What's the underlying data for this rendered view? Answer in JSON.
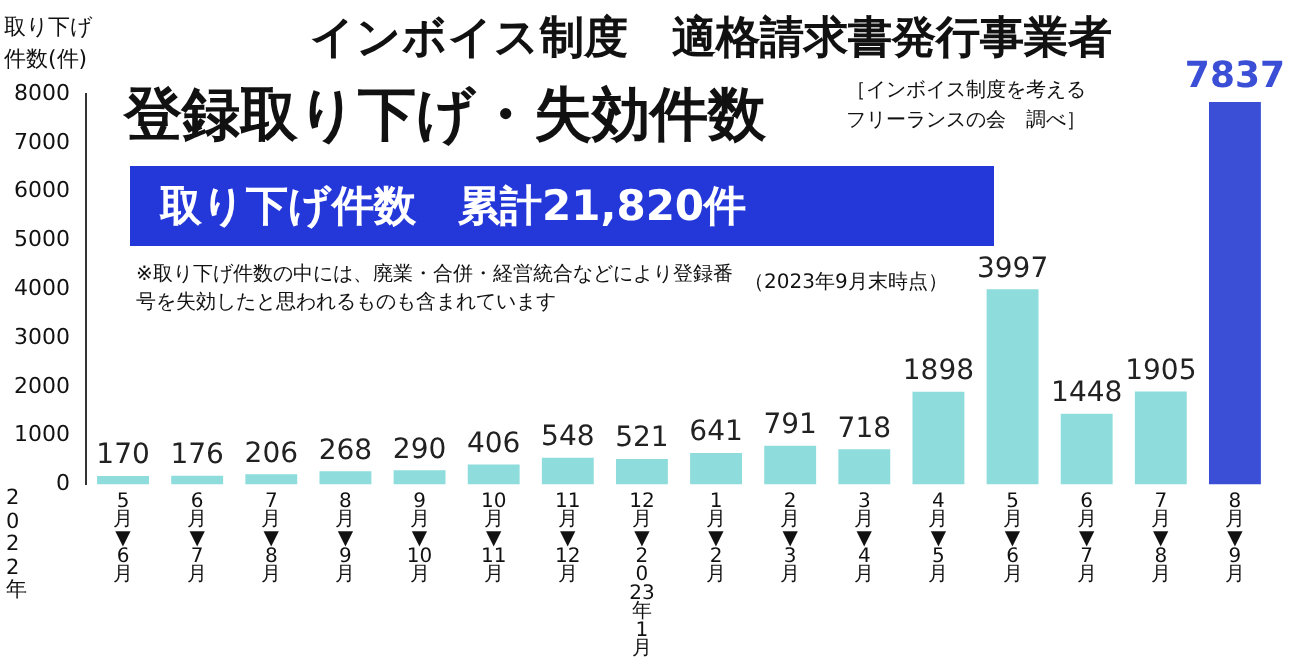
{
  "chart_data": {
    "type": "bar",
    "title": "インボイス制度　適格請求書発行事業者",
    "subtitle": "登録取り下げ・失効件数",
    "ylabel": "取り下げ件数(件)",
    "categories": [
      "5月▼6月",
      "6月▼7月",
      "7月▼8月",
      "8月▼9月",
      "9月▼10月",
      "10月▼11月",
      "11月▼12月",
      "12月▼2023年1月",
      "1月▼2月",
      "2月▼3月",
      "3月▼4月",
      "4月▼5月",
      "5月▼6月",
      "6月▼7月",
      "7月▼8月",
      "8月▼9月"
    ],
    "values": [
      170,
      176,
      206,
      268,
      290,
      406,
      548,
      521,
      641,
      791,
      718,
      1898,
      3997,
      1448,
      1905,
      7837
    ],
    "colors": [
      "#8edcdc",
      "#8edcdc",
      "#8edcdc",
      "#8edcdc",
      "#8edcdc",
      "#8edcdc",
      "#8edcdc",
      "#8edcdc",
      "#8edcdc",
      "#8edcdc",
      "#8edcdc",
      "#8edcdc",
      "#8edcdc",
      "#8edcdc",
      "#8edcdc",
      "#3b4fd6"
    ],
    "ylim": [
      0,
      8000
    ],
    "yticks": [
      0,
      1000,
      2000,
      3000,
      4000,
      5000,
      6000,
      7000,
      8000
    ],
    "grid": false,
    "legend": false,
    "data_labels": true,
    "annotations": [
      "［インボイス制度を考えるフリーランスの会　調べ］",
      "取り下げ件数　累計21,820件",
      "※取り下げ件数の中には、廃業・合併・経営統合などにより登録番号を失効したと思われるものも含まれています",
      "（2023年9月末時点）",
      "2022年"
    ]
  }
}
